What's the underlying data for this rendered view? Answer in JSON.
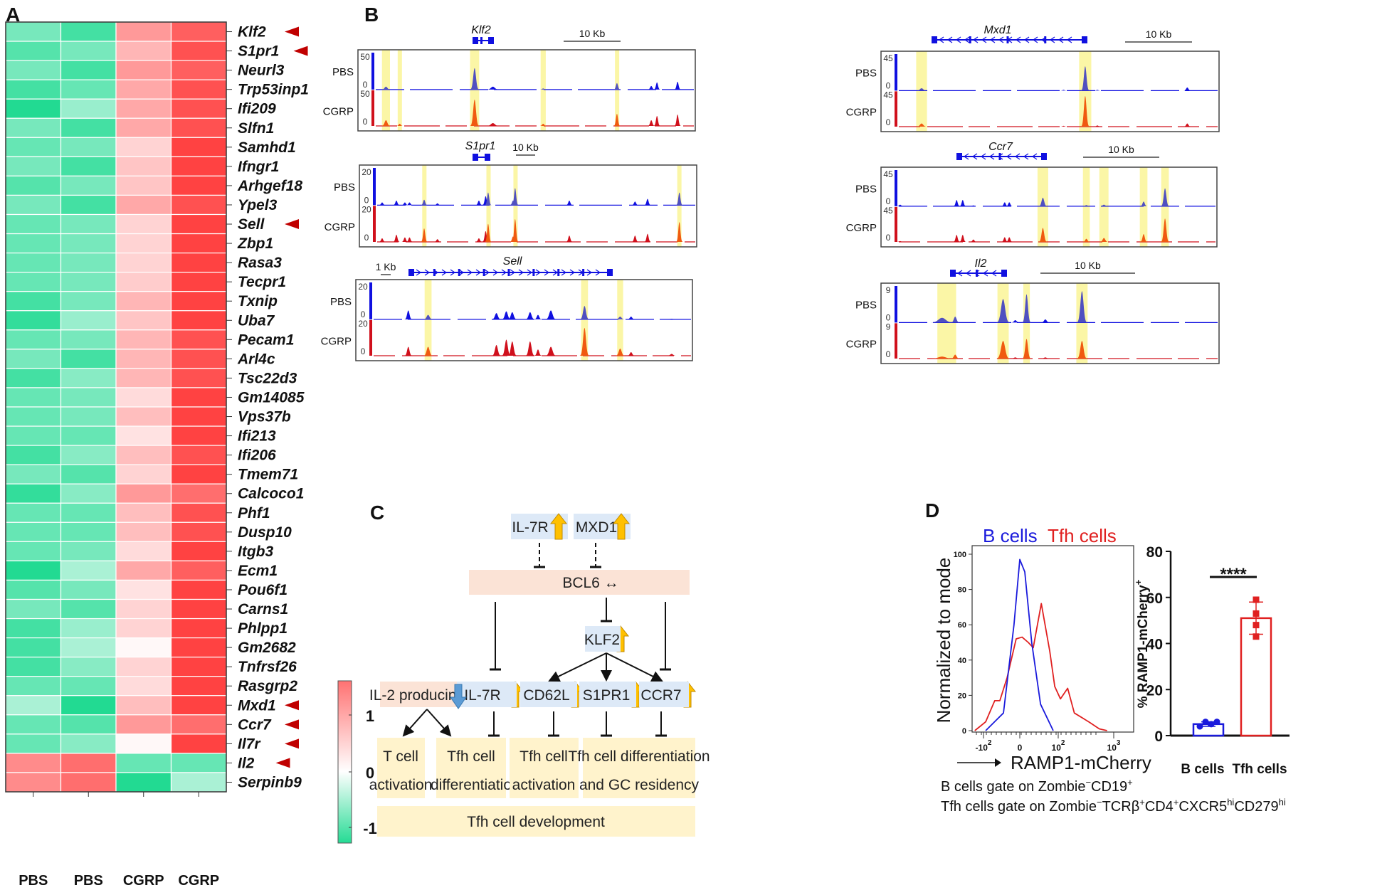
{
  "panel_labels": {
    "a": "A",
    "b": "B",
    "c": "C",
    "d": "D"
  },
  "panel_a": {
    "columns": [
      "PBS",
      "PBS",
      "CGRP",
      "CGRP"
    ],
    "colorbar": {
      "ticks": [
        "1",
        "0",
        "-1"
      ],
      "low_color": "#19d98e",
      "mid_color": "#ffffff",
      "high_color": "#ff3b3b"
    },
    "marker_color": "#c00000",
    "genes": [
      {
        "name": "Klf2",
        "marked": true,
        "values": [
          -0.8,
          -1.1,
          0.7,
          1.1
        ]
      },
      {
        "name": "S1pr1",
        "marked": true,
        "values": [
          -1.0,
          -0.8,
          0.5,
          1.2
        ]
      },
      {
        "name": "Neurl3",
        "marked": false,
        "values": [
          -0.8,
          -1.1,
          0.7,
          1.1
        ]
      },
      {
        "name": "Trp53inp1",
        "marked": false,
        "values": [
          -1.1,
          -0.9,
          0.6,
          1.2
        ]
      },
      {
        "name": "Ifi209",
        "marked": false,
        "values": [
          -1.3,
          -0.6,
          0.6,
          1.2
        ]
      },
      {
        "name": "Slfn1",
        "marked": false,
        "values": [
          -0.8,
          -1.1,
          0.6,
          1.2
        ]
      },
      {
        "name": "Samhd1",
        "marked": false,
        "values": [
          -0.9,
          -0.8,
          0.3,
          1.3
        ]
      },
      {
        "name": "Ifngr1",
        "marked": false,
        "values": [
          -0.8,
          -1.1,
          0.4,
          1.3
        ]
      },
      {
        "name": "Arhgef18",
        "marked": false,
        "values": [
          -1.0,
          -0.8,
          0.4,
          1.3
        ]
      },
      {
        "name": "Ypel3",
        "marked": false,
        "values": [
          -0.8,
          -1.1,
          0.6,
          1.2
        ]
      },
      {
        "name": "Sell",
        "marked": true,
        "values": [
          -0.9,
          -0.8,
          0.3,
          1.3
        ]
      },
      {
        "name": "Zbp1",
        "marked": false,
        "values": [
          -0.9,
          -0.8,
          0.3,
          1.3
        ]
      },
      {
        "name": "Rasa3",
        "marked": false,
        "values": [
          -0.9,
          -0.8,
          0.3,
          1.3
        ]
      },
      {
        "name": "Tecpr1",
        "marked": false,
        "values": [
          -0.9,
          -0.8,
          0.35,
          1.3
        ]
      },
      {
        "name": "Txnip",
        "marked": false,
        "values": [
          -1.1,
          -0.8,
          0.5,
          1.3
        ]
      },
      {
        "name": "Uba7",
        "marked": false,
        "values": [
          -1.2,
          -0.6,
          0.4,
          1.3
        ]
      },
      {
        "name": "Pecam1",
        "marked": false,
        "values": [
          -0.9,
          -0.8,
          0.5,
          1.2
        ]
      },
      {
        "name": "Arl4c",
        "marked": false,
        "values": [
          -0.8,
          -1.1,
          0.5,
          1.2
        ]
      },
      {
        "name": "Tsc22d3",
        "marked": false,
        "values": [
          -1.1,
          -0.7,
          0.5,
          1.2
        ]
      },
      {
        "name": "Gm14085",
        "marked": false,
        "values": [
          -0.9,
          -0.8,
          0.25,
          1.3
        ]
      },
      {
        "name": "Vps37b",
        "marked": false,
        "values": [
          -0.9,
          -0.8,
          0.45,
          1.3
        ]
      },
      {
        "name": "Ifi213",
        "marked": false,
        "values": [
          -0.9,
          -0.9,
          0.2,
          1.3
        ]
      },
      {
        "name": "Ifi206",
        "marked": false,
        "values": [
          -1.1,
          -0.7,
          0.45,
          1.2
        ]
      },
      {
        "name": "Tmem71",
        "marked": false,
        "values": [
          -0.8,
          -1.0,
          0.3,
          1.3
        ]
      },
      {
        "name": "Calcoco1",
        "marked": false,
        "values": [
          -1.2,
          -0.7,
          0.7,
          1.0
        ]
      },
      {
        "name": "Phf1",
        "marked": false,
        "values": [
          -0.9,
          -0.9,
          0.45,
          1.2
        ]
      },
      {
        "name": "Dusp10",
        "marked": false,
        "values": [
          -0.9,
          -0.9,
          0.45,
          1.2
        ]
      },
      {
        "name": "Itgb3",
        "marked": false,
        "values": [
          -0.9,
          -0.8,
          0.25,
          1.3
        ]
      },
      {
        "name": "Ecm1",
        "marked": false,
        "values": [
          -1.3,
          -0.5,
          0.6,
          1.1
        ]
      },
      {
        "name": "Pou6f1",
        "marked": false,
        "values": [
          -1.0,
          -0.8,
          0.2,
          1.3
        ]
      },
      {
        "name": "Carns1",
        "marked": false,
        "values": [
          -0.8,
          -1.0,
          0.3,
          1.3
        ]
      },
      {
        "name": "Phlpp1",
        "marked": false,
        "values": [
          -1.1,
          -0.6,
          0.3,
          1.3
        ]
      },
      {
        "name": "Gm2682",
        "marked": false,
        "values": [
          -1.1,
          -0.5,
          0.05,
          1.3
        ]
      },
      {
        "name": "Tnfrsf26",
        "marked": false,
        "values": [
          -1.1,
          -0.7,
          0.3,
          1.3
        ]
      },
      {
        "name": "Rasgrp2",
        "marked": false,
        "values": [
          -0.9,
          -0.9,
          0.25,
          1.3
        ]
      },
      {
        "name": "Mxd1",
        "marked": true,
        "values": [
          -0.5,
          -1.3,
          0.45,
          1.3
        ]
      },
      {
        "name": "Ccr7",
        "marked": true,
        "values": [
          -0.9,
          -1.0,
          0.7,
          1.0
        ]
      },
      {
        "name": "Il7r",
        "marked": true,
        "values": [
          -0.9,
          -0.7,
          0.05,
          1.3
        ]
      },
      {
        "name": "Il2",
        "marked": true,
        "values": [
          0.8,
          1.0,
          -0.9,
          -0.9
        ]
      },
      {
        "name": "Serpinb9",
        "marked": false,
        "values": [
          0.8,
          1.0,
          -1.3,
          -0.5
        ]
      }
    ]
  },
  "panel_b": {
    "track_labels": [
      "PBS",
      "CGRP"
    ],
    "colors": {
      "pbs": "#1010e0",
      "cgrp": "#d0101c",
      "pbs_highlight": "#5050c0",
      "cgrp_highlight": "#f05a10",
      "highlight": "#fbf6a6"
    },
    "loci": [
      {
        "gene": "Klf2",
        "scale_label": "10 Kb",
        "scale_kb": 10,
        "window_kb": 59,
        "ymax": "50",
        "ymin": "0",
        "ymax_value": 50,
        "highlights": [
          [
            4.9,
            1.4
          ],
          [
            7.3,
            0.7
          ],
          [
            20.4,
            1.6
          ],
          [
            32.4,
            0.9
          ],
          [
            45.3,
            0.7
          ]
        ],
        "peaks": [
          [
            4.9,
            4,
            8,
            0.5
          ],
          [
            7.3,
            0.5,
            3,
            0.3
          ],
          [
            20.4,
            30,
            37,
            0.5
          ],
          [
            23.6,
            4,
            4,
            0.7
          ],
          [
            32.4,
            1.5,
            3,
            0.4
          ],
          [
            45.3,
            9,
            17,
            0.25
          ],
          [
            51.3,
            5,
            8,
            0.4
          ],
          [
            52.3,
            10,
            14,
            0.3
          ],
          [
            55.9,
            11,
            16,
            0.35
          ]
        ]
      },
      {
        "gene": "S1pr1",
        "scale_label": "10 Kb",
        "scale_kb": 10,
        "window_kb": 175,
        "ymax": "20",
        "ymin": "0",
        "ymax_value": 20,
        "highlights": [
          [
            33.6,
            2
          ],
          [
            66.8,
            1.8
          ],
          [
            80.8,
            1.8
          ],
          [
            166,
            2.2
          ]
        ],
        "peaks": [
          [
            11.8,
            1.5,
            2,
            0.7
          ],
          [
            19.2,
            2.5,
            4,
            0.7
          ],
          [
            23.6,
            1.5,
            2.5,
            0.6
          ],
          [
            26,
            1.5,
            2.5,
            0.6
          ],
          [
            33.6,
            3,
            7.5,
            0.7
          ],
          [
            40.5,
            1,
            1.5,
            0.6
          ],
          [
            62,
            2.5,
            2,
            1
          ],
          [
            65.5,
            5,
            6,
            0.6
          ],
          [
            66.8,
            7,
            10,
            0.5
          ],
          [
            79.7,
            2.5,
            3,
            0.7
          ],
          [
            80.8,
            9.5,
            12.7,
            0.5
          ],
          [
            108.9,
            2.5,
            3.5,
            0.8
          ],
          [
            143,
            2,
            3.5,
            0.8
          ],
          [
            149.5,
            3.5,
            4.5,
            0.8
          ],
          [
            166,
            7,
            11,
            0.7
          ]
        ]
      },
      {
        "gene": "Sell",
        "scale_label": "1 Kb",
        "scale_kb": 1,
        "window_kb": 34,
        "ymax": "20",
        "ymin": "0",
        "ymax_value": 20,
        "highlights": [
          [
            7.3,
            0.7
          ],
          [
            23.1,
            0.7
          ],
          [
            26.7,
            0.6
          ]
        ],
        "peaks": [
          [
            5.3,
            5,
            5,
            0.25
          ],
          [
            7.3,
            2.5,
            5,
            0.3
          ],
          [
            14.2,
            3.5,
            6,
            0.3
          ],
          [
            15.2,
            4.5,
            9,
            0.3
          ],
          [
            15.8,
            4,
            8,
            0.3
          ],
          [
            17.6,
            4,
            8,
            0.3
          ],
          [
            18.4,
            2.5,
            3.5,
            0.25
          ],
          [
            19.7,
            5,
            5,
            0.35
          ],
          [
            23.1,
            7.5,
            15.6,
            0.3
          ],
          [
            26.7,
            1.5,
            4,
            0.3
          ],
          [
            27.8,
            1.5,
            2,
            0.25
          ],
          [
            31.9,
            0.3,
            1,
            0.3
          ]
        ]
      },
      {
        "gene": "Mxd1",
        "scale_label": "10 Kb",
        "scale_kb": 10,
        "window_kb": 50,
        "ymax": "45",
        "ymin": "0",
        "ymax_value": 45,
        "highlights": [
          [
            6,
            1.6
          ],
          [
            30.2,
            1.8
          ]
        ],
        "peaks": [
          [
            6,
            3,
            4,
            0.5
          ],
          [
            27,
            1,
            1,
            0.2
          ],
          [
            30.2,
            31,
            39,
            0.4
          ],
          [
            32,
            1,
            1.5,
            0.15
          ],
          [
            45.3,
            4,
            4,
            0.35
          ]
        ]
      },
      {
        "gene": "Ccr7",
        "scale_label": "10 Kb",
        "scale_kb": 10,
        "window_kb": 44,
        "ymax": "45",
        "ymin": "0",
        "ymax_value": 45,
        "highlights": [
          [
            21.2,
            1.4
          ],
          [
            26.9,
            0.9
          ],
          [
            29.2,
            1.2
          ],
          [
            34.4,
            1
          ],
          [
            37.2,
            1
          ]
        ],
        "peaks": [
          [
            2.5,
            2,
            1,
            0.3
          ],
          [
            9.9,
            8,
            9,
            0.25
          ],
          [
            10.7,
            8,
            9,
            0.25
          ],
          [
            12.1,
            1,
            3,
            0.25
          ],
          [
            16.2,
            5,
            6,
            0.25
          ],
          [
            16.8,
            5,
            6,
            0.25
          ],
          [
            21.2,
            11,
            18,
            0.35
          ],
          [
            26.9,
            1.5,
            4,
            0.3
          ],
          [
            29.2,
            2,
            5,
            0.35
          ],
          [
            34.4,
            6,
            10,
            0.3
          ],
          [
            37.2,
            23,
            30,
            0.35
          ]
        ]
      },
      {
        "gene": "Il2",
        "scale_label": "10 Kb",
        "scale_kb": 10,
        "window_kb": 36,
        "ymax": "9",
        "ymin": "0",
        "ymax_value": 9,
        "highlights": [
          [
            7,
            2
          ],
          [
            13,
            1.2
          ],
          [
            15.5,
            0.7
          ],
          [
            21.4,
            1.2
          ]
        ],
        "peaks": [
          [
            6.5,
            1.2,
            0.5,
            0.8
          ],
          [
            7.9,
            1.5,
            1,
            0.3
          ],
          [
            13,
            6,
            4.5,
            0.45
          ],
          [
            15.5,
            7.2,
            5,
            0.3
          ],
          [
            21.4,
            8,
            4.5,
            0.35
          ],
          [
            17.5,
            0.8,
            0.3,
            0.3
          ],
          [
            14.3,
            0.6,
            0.3,
            0.3
          ]
        ]
      }
    ]
  },
  "panel_c": {
    "top": [
      "IL-7R",
      "MXD1"
    ],
    "bcl6": "BCL6 ↔",
    "klf2": "KLF2",
    "il2": "IL-2 producing",
    "row": [
      "IL-7R",
      "CD62L",
      "S1PR1",
      "CCR7"
    ],
    "outcomes": [
      [
        "T cell",
        "activation"
      ],
      [
        "Tfh cell",
        "differentiatio"
      ],
      [
        "Tfh cell",
        "activation"
      ],
      [
        "Tfh cell differentiation",
        "and GC  residency"
      ]
    ],
    "development": "Tfh cell development",
    "colors": {
      "gene_box": "#dde9f7",
      "bcl6_box": "#fbe3d6",
      "outcome_box": "#fff3cc",
      "up_arrow": "#ffc000",
      "down_arrow": "#5b9bd5"
    }
  },
  "panel_d": {
    "legend": [
      {
        "label": "B cells",
        "color": "#1a1adc"
      },
      {
        "label": "Tfh cells",
        "color": "#e02020"
      }
    ],
    "histogram": {
      "ylabel": "Normalized to mode",
      "xlabel": "RAMP1-mCherry",
      "yticks": [
        "0",
        "20",
        "40",
        "60",
        "80",
        "100"
      ],
      "xticks": [
        {
          "base": "-10",
          "exp": "2"
        },
        {
          "base": "0",
          "exp": ""
        },
        {
          "base": "10",
          "exp": "2"
        },
        {
          "base": "10",
          "exp": "3"
        }
      ],
      "b_cells": [
        [
          -0.94,
          0
        ],
        [
          -0.45,
          10
        ],
        [
          -0.16,
          60
        ],
        [
          0,
          97
        ],
        [
          0.13,
          90
        ],
        [
          0.31,
          50
        ],
        [
          0.54,
          15
        ],
        [
          0.87,
          0
        ]
      ],
      "tfh_cells": [
        [
          -1.24,
          0
        ],
        [
          -0.94,
          5
        ],
        [
          -0.69,
          17
        ],
        [
          -0.55,
          17
        ],
        [
          -0.35,
          30
        ],
        [
          -0.1,
          52
        ],
        [
          0.06,
          53
        ],
        [
          0.22,
          50
        ],
        [
          0.35,
          47
        ],
        [
          0.56,
          72
        ],
        [
          0.78,
          45
        ],
        [
          0.91,
          25
        ],
        [
          1.04,
          18
        ],
        [
          1.17,
          24
        ],
        [
          1.29,
          10
        ],
        [
          1.55,
          5
        ],
        [
          1.74,
          1
        ],
        [
          1.88,
          0
        ]
      ]
    },
    "bar": {
      "ylabel": "% RAMP1-mCherry",
      "ylabel_sup": "+",
      "yticks": [
        "0",
        "20",
        "40",
        "60",
        "80"
      ],
      "ylim": [
        0,
        80
      ],
      "categories": [
        "B cells",
        "Tfh cells"
      ],
      "means": [
        5,
        51
      ],
      "sd": [
        1,
        7
      ],
      "points": [
        [
          4,
          6,
          5,
          6
        ],
        [
          59,
          53,
          48,
          43
        ]
      ],
      "significance": "****"
    },
    "gate_lines": [
      [
        {
          "t": "B cells gate on Zombie"
        },
        {
          "sup": "−"
        },
        {
          "t": "CD19"
        },
        {
          "sup": "+"
        }
      ],
      [
        {
          "t": "Tfh cells gate on Zombie"
        },
        {
          "sup": "−"
        },
        {
          "t": "TCRβ"
        },
        {
          "sup": "+"
        },
        {
          "t": "CD4"
        },
        {
          "sup": "+"
        },
        {
          "t": "CXCR5"
        },
        {
          "sup": "hi"
        },
        {
          "t": "CD279"
        },
        {
          "sup": "hi"
        }
      ]
    ]
  }
}
